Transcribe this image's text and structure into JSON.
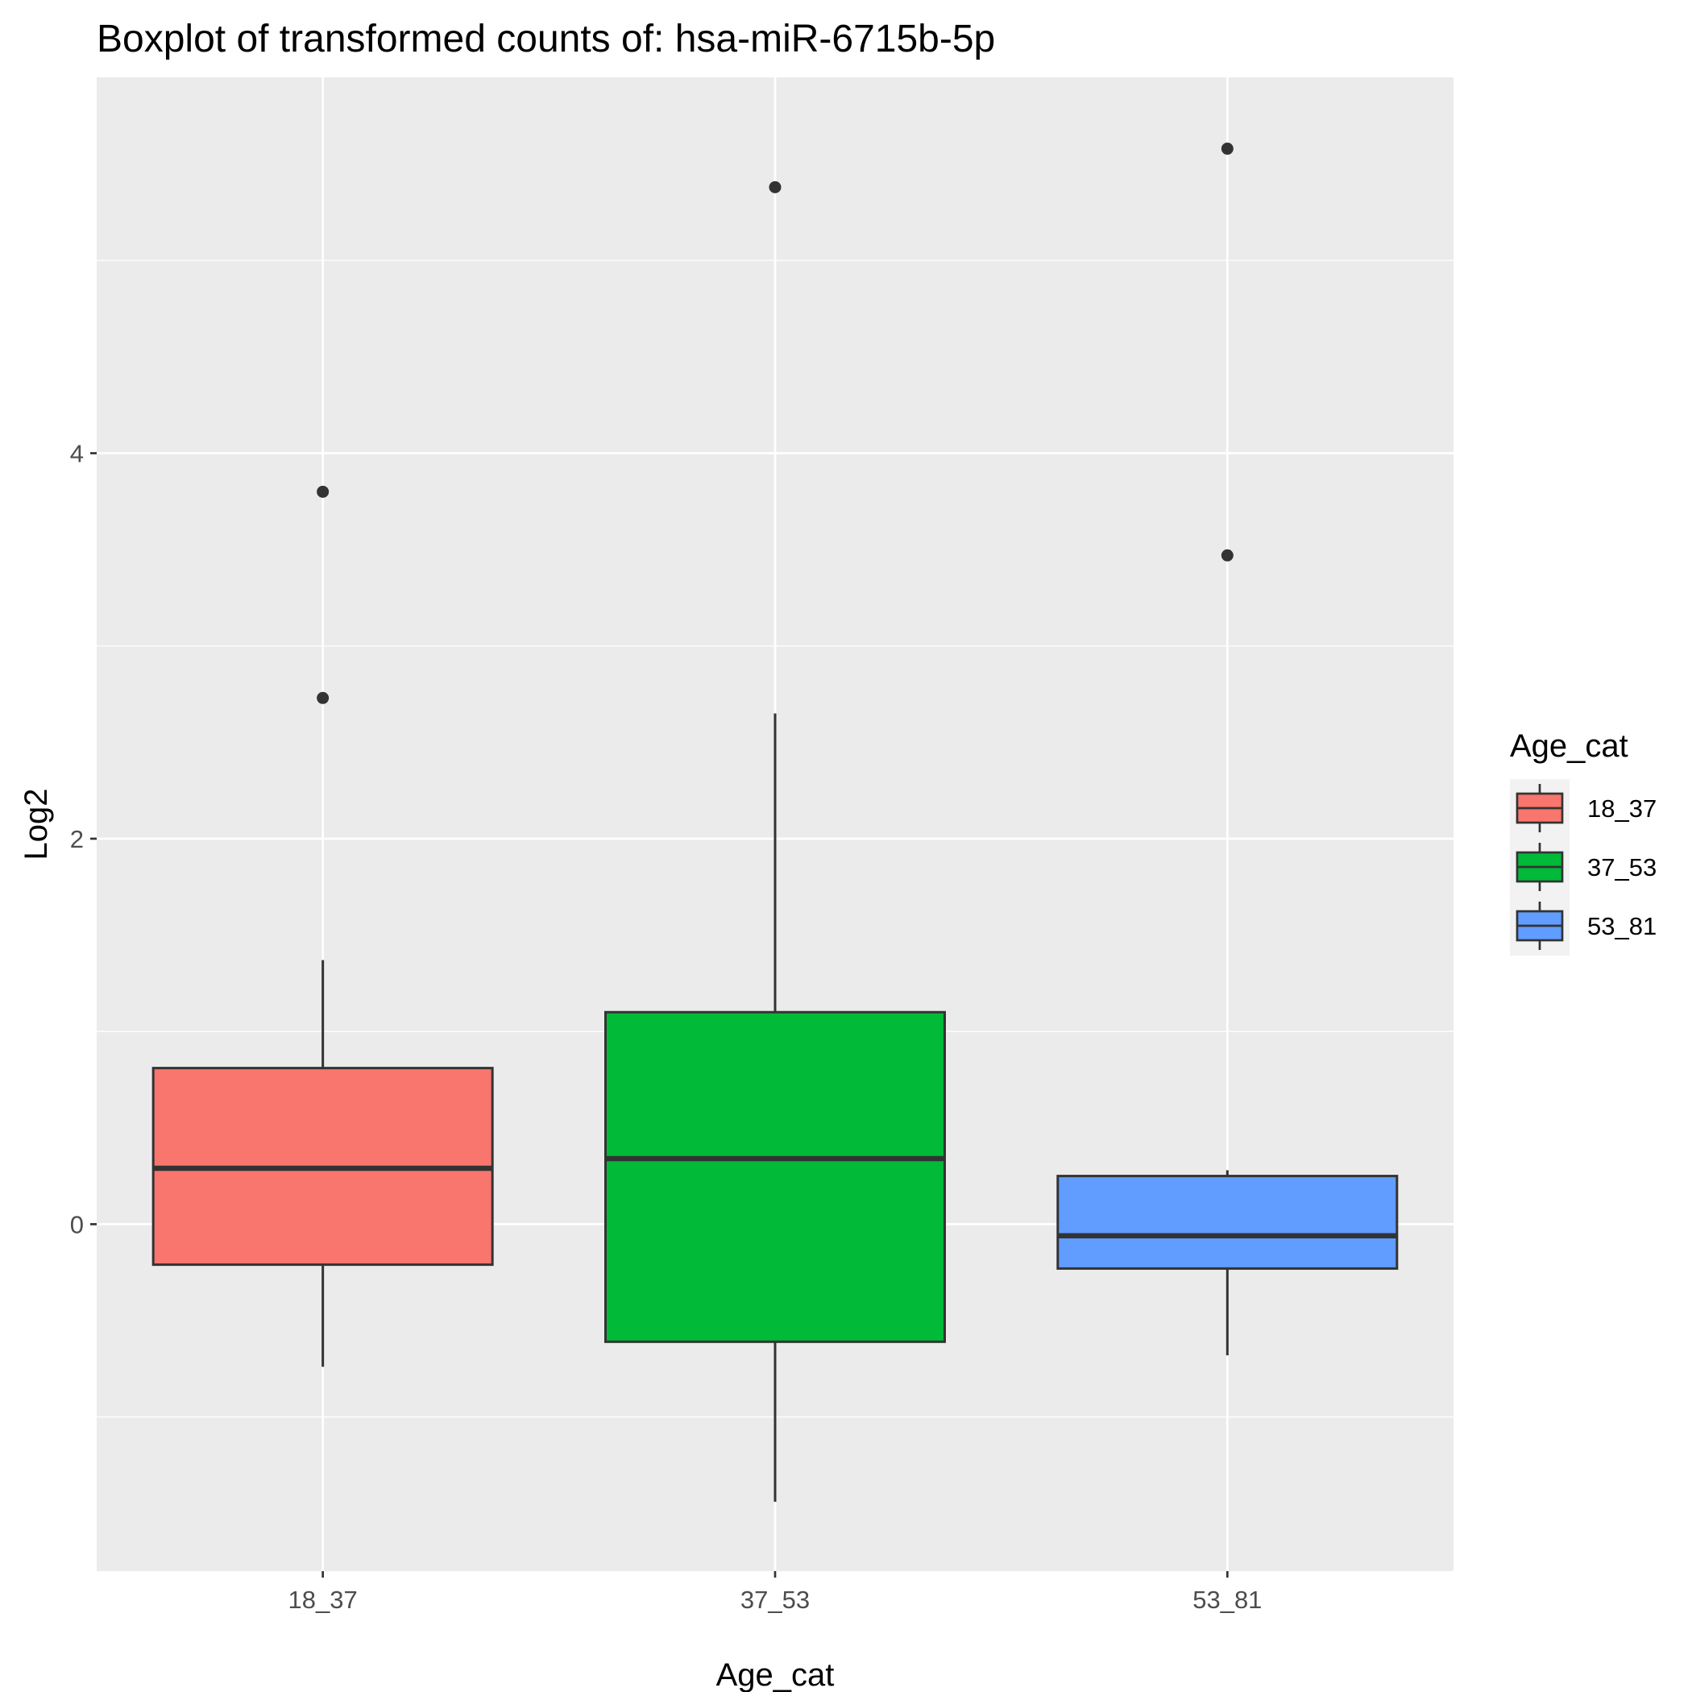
{
  "chart_data": {
    "type": "boxplot",
    "title": "Boxplot of transformed counts of: hsa-miR-6715b-5p",
    "xlabel": "Age_cat",
    "ylabel": "Log2",
    "categories": [
      "18_37",
      "37_53",
      "53_81"
    ],
    "ylim": [
      -1.8,
      5.95
    ],
    "yticks": [
      0,
      2,
      4
    ],
    "grid": true,
    "legend": {
      "title": "Age_cat",
      "placement": "right",
      "entries": [
        "18_37",
        "37_53",
        "53_81"
      ]
    },
    "series": [
      {
        "category": "18_37",
        "color": "#F8766D",
        "whisker_low": -0.74,
        "q1": -0.21,
        "median": 0.29,
        "q3": 0.81,
        "whisker_high": 1.37,
        "outliers": [
          3.8,
          2.73
        ]
      },
      {
        "category": "37_53",
        "color": "#00BA38",
        "whisker_low": -1.44,
        "q1": -0.61,
        "median": 0.34,
        "q3": 1.1,
        "whisker_high": 2.65,
        "outliers": [
          5.38
        ]
      },
      {
        "category": "53_81",
        "color": "#619CFF",
        "whisker_low": -0.68,
        "q1": -0.23,
        "median": -0.06,
        "q3": 0.25,
        "whisker_high": 0.28,
        "outliers": [
          5.58,
          3.47
        ]
      }
    ]
  }
}
